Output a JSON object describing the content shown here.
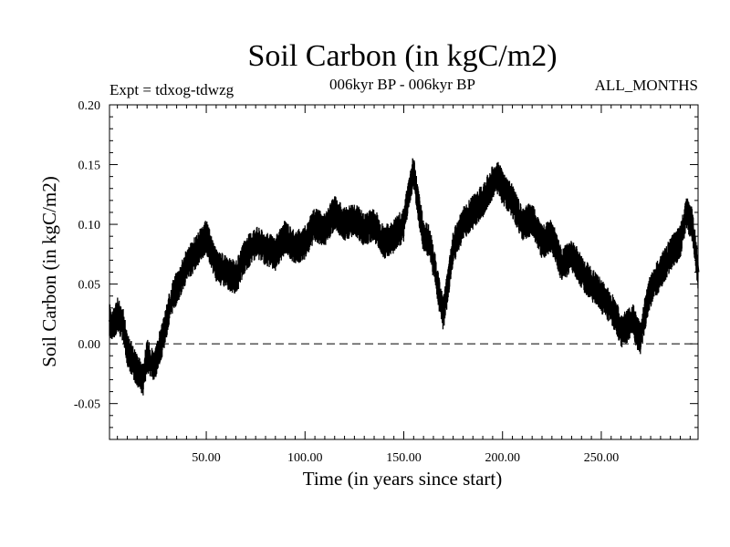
{
  "chart_data": {
    "type": "line",
    "title": "Soil Carbon (in kgC/m2)",
    "experiment": "Expt = tdxog-tdwzg",
    "period": "006kyr BP - 006kyr BP",
    "months": "ALL_MONTHS",
    "xlabel": "Time (in years since start)",
    "ylabel": "Soil Carbon (in kgC/m2)",
    "xlim": [
      1,
      299
    ],
    "ylim": [
      -0.08,
      0.2
    ],
    "xticks": [
      50,
      100,
      150,
      200,
      250
    ],
    "xtick_labels": [
      "50.00",
      "100.00",
      "150.00",
      "200.00",
      "250.00"
    ],
    "yticks": [
      -0.05,
      0.0,
      0.05,
      0.1,
      0.15,
      0.2
    ],
    "ytick_labels": [
      "-0.05",
      "0.00",
      "0.05",
      "0.10",
      "0.15",
      "0.20"
    ],
    "reference_line": 0.0,
    "line_color": "#000000",
    "band_halfwidth": 0.012,
    "series": [
      {
        "x": [
          1,
          3,
          5,
          8,
          10,
          13,
          16,
          18,
          20,
          22,
          24,
          26,
          28,
          30,
          33,
          36,
          40,
          44,
          48,
          50,
          55,
          60,
          65,
          70,
          75,
          80,
          85,
          90,
          95,
          100,
          105,
          110,
          115,
          120,
          125,
          130,
          135,
          140,
          145,
          150,
          153,
          155,
          157,
          160,
          163,
          166,
          168,
          170,
          172,
          175,
          180,
          185,
          190,
          195,
          198,
          200,
          205,
          210,
          215,
          220,
          225,
          230,
          235,
          240,
          245,
          250,
          255,
          258,
          260,
          263,
          266,
          268,
          270,
          272,
          275,
          280,
          285,
          290,
          293,
          296,
          299
        ],
        "y": [
          0.02,
          0.015,
          0.025,
          0.015,
          -0.005,
          -0.015,
          -0.025,
          -0.03,
          -0.01,
          -0.015,
          -0.02,
          -0.005,
          0.005,
          0.02,
          0.04,
          0.05,
          0.065,
          0.075,
          0.085,
          0.09,
          0.065,
          0.06,
          0.055,
          0.075,
          0.085,
          0.08,
          0.075,
          0.09,
          0.08,
          0.085,
          0.1,
          0.095,
          0.11,
          0.1,
          0.105,
          0.095,
          0.1,
          0.085,
          0.09,
          0.1,
          0.13,
          0.145,
          0.12,
          0.09,
          0.085,
          0.06,
          0.04,
          0.025,
          0.045,
          0.08,
          0.1,
          0.11,
          0.12,
          0.135,
          0.14,
          0.13,
          0.12,
          0.1,
          0.105,
          0.085,
          0.09,
          0.065,
          0.075,
          0.06,
          0.05,
          0.04,
          0.03,
          0.02,
          0.01,
          0.015,
          0.02,
          0.01,
          0.005,
          0.025,
          0.045,
          0.06,
          0.075,
          0.085,
          0.11,
          0.1,
          0.06
        ]
      }
    ]
  }
}
